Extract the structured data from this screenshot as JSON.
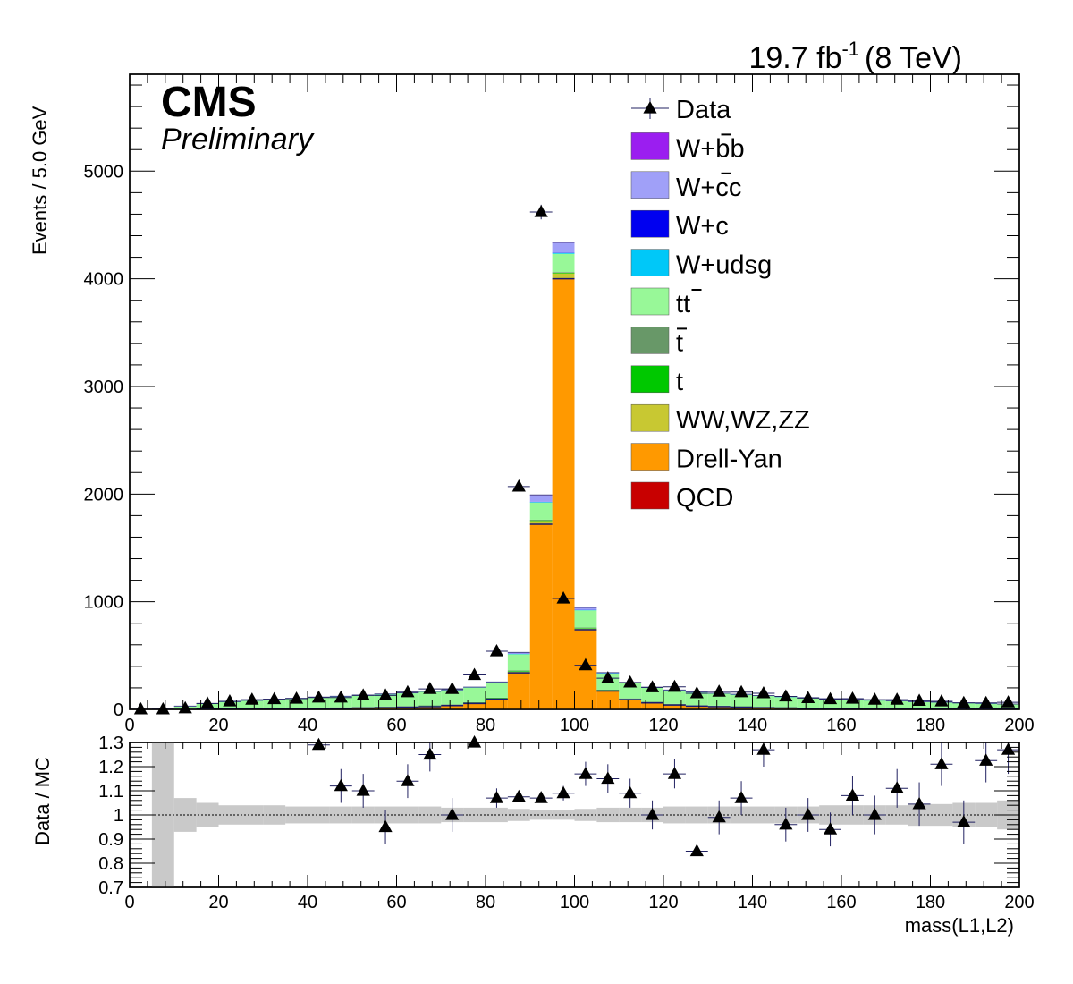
{
  "lumi": {
    "value": "19.7 fb",
    "exponent": "-1",
    "energy": "(8 TeV)"
  },
  "cms_label": "CMS",
  "status_label": "Preliminary",
  "chart_data": [
    {
      "type": "stacked_histogram",
      "ylabel": "Events / 5.0 GeV",
      "xlim": [
        0,
        200
      ],
      "ylim": [
        0,
        5900
      ],
      "x_ticks": [
        "0",
        "20",
        "40",
        "60",
        "80",
        "100",
        "120",
        "140",
        "160",
        "180",
        "200"
      ],
      "y_ticks": [
        "0",
        "1000",
        "2000",
        "3000",
        "4000",
        "5000"
      ],
      "bin_width": 5,
      "bins": [
        0,
        5,
        10,
        15,
        20,
        25,
        30,
        35,
        40,
        45,
        50,
        55,
        60,
        65,
        70,
        75,
        80,
        85,
        90,
        95,
        100,
        105,
        110,
        115,
        120,
        125,
        130,
        135,
        140,
        145,
        150,
        155,
        160,
        165,
        170,
        175,
        180,
        185,
        190,
        195
      ],
      "legend_position": "top-right",
      "legend": [
        {
          "name": "Data",
          "type": "marker"
        },
        {
          "name": "W+bb",
          "overline_from": 3,
          "color": "#9b1ef0",
          "type": "fill"
        },
        {
          "name": "W+cc",
          "overline_from": 3,
          "color": "#a0a0f8",
          "type": "fill"
        },
        {
          "name": "W+c",
          "color": "#0000f0",
          "type": "fill"
        },
        {
          "name": "W+udsg",
          "color": "#00c8f8",
          "type": "fill"
        },
        {
          "name": "tt",
          "overline_from": 1,
          "color": "#98f898",
          "type": "fill"
        },
        {
          "name": "t",
          "overline_from": 0,
          "color": "#689868",
          "type": "fill"
        },
        {
          "name": "t",
          "color": "#00c800",
          "type": "fill"
        },
        {
          "name": "WW,WZ,ZZ",
          "color": "#c8c832",
          "type": "fill"
        },
        {
          "name": "Drell-Yan",
          "color": "#ff9900",
          "type": "fill"
        },
        {
          "name": "QCD",
          "color": "#c80000",
          "type": "fill"
        }
      ],
      "stack_order": [
        "QCD",
        "Drell-Yan",
        "WW,WZ,ZZ",
        "t",
        "tbar",
        "ttbar",
        "W+udsg",
        "W+c",
        "W+cc",
        "W+bb"
      ],
      "series": [
        {
          "name": "Drell-Yan",
          "color": "#ff9900",
          "values": [
            0,
            0,
            0,
            2,
            3,
            4,
            5,
            6,
            8,
            10,
            12,
            15,
            20,
            25,
            35,
            55,
            95,
            340,
            1720,
            4000,
            740,
            170,
            90,
            60,
            40,
            30,
            25,
            20,
            15,
            12,
            10,
            8,
            7,
            6,
            5,
            4,
            4,
            3,
            3,
            2
          ]
        },
        {
          "name": "WW,WZ,ZZ",
          "color": "#c8c832",
          "values": [
            0,
            0,
            0,
            0,
            0,
            0,
            0,
            0,
            1,
            1,
            1,
            1,
            1,
            2,
            2,
            2,
            4,
            10,
            30,
            50,
            10,
            3,
            2,
            1,
            1,
            1,
            1,
            1,
            1,
            0,
            0,
            0,
            0,
            0,
            0,
            0,
            0,
            0,
            0,
            0
          ]
        },
        {
          "name": "t",
          "color": "#00c800",
          "values": [
            0,
            0,
            1,
            2,
            3,
            3,
            4,
            4,
            4,
            4,
            5,
            5,
            5,
            5,
            5,
            5,
            5,
            6,
            6,
            6,
            5,
            5,
            5,
            5,
            5,
            4,
            4,
            4,
            4,
            4,
            3,
            3,
            3,
            3,
            3,
            2,
            2,
            2,
            2,
            2
          ]
        },
        {
          "name": "tbar",
          "color": "#689868",
          "values": [
            0,
            0,
            1,
            2,
            3,
            3,
            4,
            4,
            4,
            4,
            5,
            5,
            5,
            5,
            5,
            5,
            5,
            6,
            6,
            6,
            5,
            5,
            5,
            5,
            5,
            4,
            4,
            4,
            4,
            4,
            3,
            3,
            3,
            3,
            3,
            2,
            2,
            2,
            2,
            2
          ]
        },
        {
          "name": "ttbar",
          "color": "#98f898",
          "values": [
            0,
            6,
            25,
            45,
            60,
            70,
            78,
            85,
            92,
            98,
            105,
            112,
            118,
            125,
            130,
            135,
            140,
            150,
            160,
            170,
            160,
            150,
            140,
            130,
            124,
            118,
            112,
            106,
            100,
            94,
            88,
            82,
            76,
            70,
            65,
            60,
            55,
            50,
            45,
            40
          ]
        },
        {
          "name": "W+udsg",
          "color": "#00c8f8",
          "values": [
            0,
            0,
            1,
            1,
            2,
            2,
            2,
            2,
            3,
            3,
            3,
            3,
            3,
            3,
            3,
            3,
            3,
            4,
            5,
            8,
            4,
            3,
            3,
            3,
            3,
            3,
            3,
            3,
            3,
            3,
            3,
            2,
            2,
            2,
            2,
            2,
            2,
            2,
            2,
            2
          ]
        },
        {
          "name": "W+c",
          "color": "#0000f0",
          "values": [
            0,
            0,
            1,
            1,
            1,
            1,
            1,
            1,
            1,
            1,
            1,
            1,
            1,
            1,
            1,
            1,
            1,
            2,
            2,
            3,
            2,
            1,
            1,
            1,
            1,
            1,
            1,
            1,
            1,
            1,
            1,
            1,
            1,
            1,
            1,
            1,
            1,
            1,
            1,
            1
          ]
        },
        {
          "name": "W+cc",
          "color": "#a0a0f8",
          "values": [
            0,
            0,
            1,
            1,
            1,
            1,
            1,
            1,
            1,
            1,
            1,
            1,
            1,
            1,
            1,
            1,
            2,
            10,
            60,
            90,
            20,
            5,
            2,
            1,
            1,
            1,
            1,
            1,
            1,
            1,
            1,
            1,
            1,
            1,
            1,
            1,
            1,
            1,
            1,
            1
          ]
        },
        {
          "name": "W+bb",
          "color": "#9b1ef0",
          "values": [
            0,
            0,
            0,
            0,
            0,
            0,
            0,
            0,
            0,
            0,
            0,
            0,
            0,
            0,
            0,
            0,
            0,
            1,
            3,
            5,
            1,
            0,
            0,
            0,
            0,
            0,
            0,
            0,
            0,
            0,
            0,
            0,
            0,
            0,
            0,
            0,
            0,
            0,
            0,
            0
          ]
        },
        {
          "name": "Data",
          "type": "points",
          "x": [
            2.5,
            7.5,
            12.5,
            17.5,
            22.5,
            27.5,
            32.5,
            37.5,
            42.5,
            47.5,
            52.5,
            57.5,
            62.5,
            67.5,
            72.5,
            77.5,
            82.5,
            87.5,
            92.5,
            97.5,
            102.5,
            107.5,
            112.5,
            117.5,
            122.5,
            127.5,
            132.5,
            137.5,
            142.5,
            147.5,
            152.5,
            157.5,
            162.5,
            167.5,
            172.5,
            177.5,
            182.5,
            187.5,
            192.5,
            197.5
          ],
          "values": [
            1,
            1,
            10,
            55,
            75,
            90,
            95,
            100,
            110,
            110,
            130,
            130,
            160,
            190,
            190,
            320,
            540,
            2070,
            4620,
            1030,
            410,
            290,
            250,
            205,
            210,
            150,
            165,
            160,
            150,
            120,
            105,
            95,
            100,
            90,
            90,
            80,
            75,
            60,
            60,
            65
          ]
        }
      ]
    },
    {
      "type": "scatter",
      "ylabel": "Data / MC",
      "xlabel": "mass(L1,L2)",
      "xlim": [
        0,
        200
      ],
      "ylim": [
        0.7,
        1.3
      ],
      "x_ticks": [
        "0",
        "20",
        "40",
        "60",
        "80",
        "100",
        "120",
        "140",
        "160",
        "180",
        "200"
      ],
      "y_ticks": [
        "0.7",
        "0.8",
        "0.9",
        "1",
        "1.1",
        "1.2",
        "1.3"
      ],
      "reference_line": 1.0,
      "series": [
        {
          "name": "Data / MC",
          "x": [
            42.5,
            47.5,
            52.5,
            57.5,
            62.5,
            67.5,
            72.5,
            77.5,
            82.5,
            87.5,
            92.5,
            97.5,
            102.5,
            107.5,
            112.5,
            117.5,
            122.5,
            127.5,
            132.5,
            137.5,
            142.5,
            147.5,
            152.5,
            157.5,
            162.5,
            167.5,
            172.5,
            177.5,
            182.5,
            187.5,
            192.5,
            197.5
          ],
          "values": [
            1.29,
            1.12,
            1.1,
            0.95,
            1.14,
            1.25,
            1.0,
            1.3,
            1.07,
            1.075,
            1.07,
            1.09,
            1.17,
            1.15,
            1.09,
            1.0,
            1.17,
            0.85,
            0.99,
            1.07,
            1.27,
            0.96,
            1.0,
            0.94,
            1.08,
            1.0,
            1.11,
            1.045,
            1.21,
            0.97,
            1.225,
            1.27
          ],
          "errors": [
            0.0,
            0.07,
            0.07,
            0.07,
            0.07,
            0.07,
            0.07,
            0.0,
            0.04,
            0.02,
            0.01,
            0.03,
            0.05,
            0.06,
            0.06,
            0.06,
            0.06,
            0.0,
            0.07,
            0.07,
            0.07,
            0.07,
            0.07,
            0.07,
            0.08,
            0.08,
            0.08,
            0.09,
            0.09,
            0.09,
            0.09,
            0.1
          ]
        }
      ],
      "mc_uncertainty": {
        "x": [
          5,
          10,
          15,
          20,
          25,
          30,
          35,
          40,
          45,
          50,
          55,
          60,
          65,
          70,
          75,
          80,
          85,
          90,
          95,
          100,
          105,
          110,
          115,
          120,
          125,
          130,
          135,
          140,
          145,
          150,
          155,
          160,
          165,
          170,
          175,
          180,
          185,
          190,
          195
        ],
        "halfwidth": [
          0.3,
          0.07,
          0.05,
          0.04,
          0.04,
          0.04,
          0.035,
          0.035,
          0.035,
          0.035,
          0.035,
          0.035,
          0.035,
          0.03,
          0.03,
          0.03,
          0.025,
          0.02,
          0.02,
          0.025,
          0.03,
          0.03,
          0.03,
          0.035,
          0.035,
          0.035,
          0.035,
          0.035,
          0.035,
          0.035,
          0.04,
          0.04,
          0.04,
          0.04,
          0.045,
          0.045,
          0.05,
          0.05,
          0.06
        ]
      }
    }
  ]
}
